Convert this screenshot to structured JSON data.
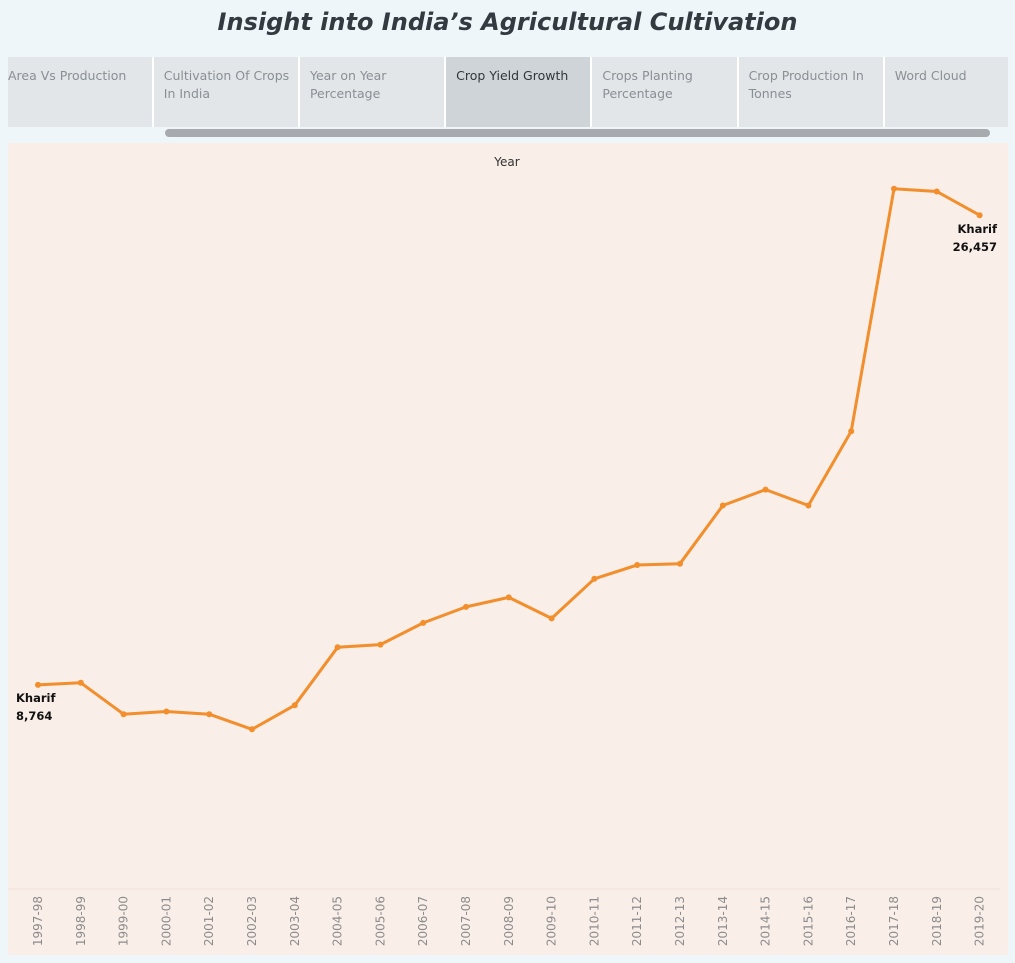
{
  "dashboard": {
    "title": "Insight into India’s Agricultural Cultivation"
  },
  "tabs": [
    {
      "label": "Area Vs Production",
      "active": false
    },
    {
      "label": "Cultivation Of Crops In India",
      "active": false
    },
    {
      "label": "Year on Year Percentage",
      "active": false
    },
    {
      "label": "Crop Yield Growth",
      "active": true
    },
    {
      "label": "Crops Planting Percentage",
      "active": false
    },
    {
      "label": "Crop Production In Tonnes",
      "active": false
    },
    {
      "label": "Word Cloud",
      "active": false
    }
  ],
  "chart_data": {
    "type": "line",
    "title": "",
    "header_label": "Year",
    "xlabel": "",
    "ylabel": "",
    "grid": false,
    "line_color": "#f28e2b",
    "label_color": "#111111",
    "tick_color": "#8c8c8c",
    "background": "#f9eee8",
    "x": [
      "1997-98",
      "1998-99",
      "1999-00",
      "2000-01",
      "2001-02",
      "2002-03",
      "2003-04",
      "2004-05",
      "2005-06",
      "2006-07",
      "2007-08",
      "2008-09",
      "2009-10",
      "2010-11",
      "2011-12",
      "2012-13",
      "2013-14",
      "2014-15",
      "2015-16",
      "2016-17",
      "2017-18",
      "2018-19",
      "2019-20"
    ],
    "series": [
      {
        "values": [
          8764,
          8842,
          7660,
          7760,
          7660,
          7090,
          8000,
          10180,
          10280,
          11100,
          11700,
          12060,
          11270,
          12760,
          13280,
          13330,
          15520,
          16120,
          15520,
          18320,
          27450,
          27350,
          26457
        ]
      }
    ],
    "ylim": [
      1150,
      28800
    ],
    "annotations": [
      {
        "index": 0,
        "series": "Kharif",
        "value_label": "8,764"
      },
      {
        "index": 22,
        "series": "Kharif",
        "value_label": "26,457"
      }
    ]
  }
}
